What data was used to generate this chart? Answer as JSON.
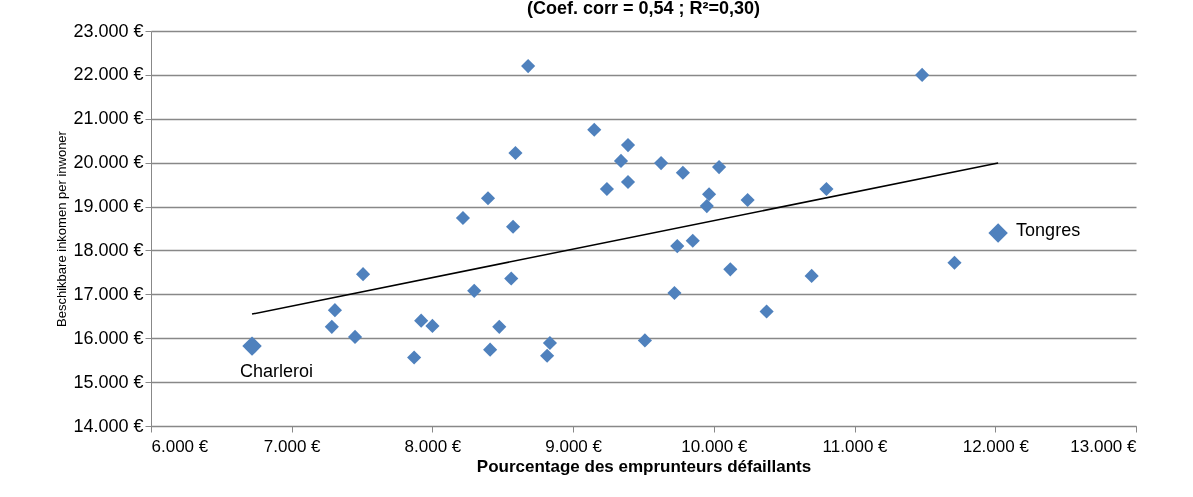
{
  "chart_data": {
    "type": "scatter",
    "title": "(Coef. corr = 0,54 ; R²=0,30)",
    "xlabel": "Pourcentage des emprunteurs défaillants",
    "ylabel": "Beschikbare inkomen per inwoner",
    "series": [
      {
        "color": "#4f81bd",
        "x": [
          8680,
          11480,
          9150,
          9390,
          8590,
          8395,
          8217,
          8573,
          9340,
          9625,
          10037,
          9780,
          9390,
          9240,
          9966,
          9950,
          10240,
          10800,
          9740,
          9850,
          7507,
          7307,
          7285,
          7450,
          7920,
          8000,
          7870,
          8297,
          8560,
          8475,
          8410,
          8835,
          8815,
          9510,
          9720,
          10117,
          10375,
          10695,
          11710
        ],
        "values": [
          22200,
          22000,
          20750,
          20400,
          20220,
          19190,
          18740,
          18540,
          20040,
          19990,
          19900,
          19770,
          19560,
          19400,
          19280,
          19010,
          19150,
          19400,
          18100,
          18220,
          17460,
          16640,
          16260,
          16030,
          16400,
          16280,
          15560,
          17080,
          17360,
          16260,
          15740,
          15890,
          15600,
          15950,
          17030,
          17570,
          16610,
          17420,
          17720
        ]
      },
      {
        "color": "#4f81bd",
        "x": [
          6718,
          12020
        ],
        "values": [
          15820,
          18400
        ]
      },
      {
        "type": "line",
        "marker": "none",
        "color": "#000000",
        "x": [
          6718,
          12020
        ],
        "values": [
          16550,
          19990
        ]
      }
    ],
    "annotations": [
      {
        "text": "Charleroi",
        "x": 6718,
        "y": 15820
      },
      {
        "text": "Tongres",
        "x": 12020,
        "y": 18400
      }
    ],
    "xlim": [
      6000,
      13000
    ],
    "xticks": [
      {
        "value": 6000,
        "label": "6.000 €"
      },
      {
        "value": 7000,
        "label": "7.000 €"
      },
      {
        "value": 8000,
        "label": "8.000 €"
      },
      {
        "value": 9000,
        "label": "9.000 €"
      },
      {
        "value": 10000,
        "label": "10.000 €"
      },
      {
        "value": 11000,
        "label": "11.000 €"
      },
      {
        "value": 12000,
        "label": "12.000 €"
      },
      {
        "value": 13000,
        "label": "13.000 €"
      }
    ],
    "ylim": [
      14000,
      23000
    ],
    "yticks": [
      {
        "value": 14000,
        "label": "14.000 €"
      },
      {
        "value": 15000,
        "label": "15.000 €"
      },
      {
        "value": 16000,
        "label": "16.000 €"
      },
      {
        "value": 17000,
        "label": "17.000 €"
      },
      {
        "value": 18000,
        "label": "18.000 €"
      },
      {
        "value": 19000,
        "label": "19.000 €"
      },
      {
        "value": 20000,
        "label": "20.000 €"
      },
      {
        "value": 21000,
        "label": "21.000 €"
      },
      {
        "value": 22000,
        "label": "22.000 €"
      },
      {
        "value": 23000,
        "label": "23.000 €"
      }
    ],
    "grid": "y",
    "marker": "diamond",
    "line_style": "solid"
  }
}
